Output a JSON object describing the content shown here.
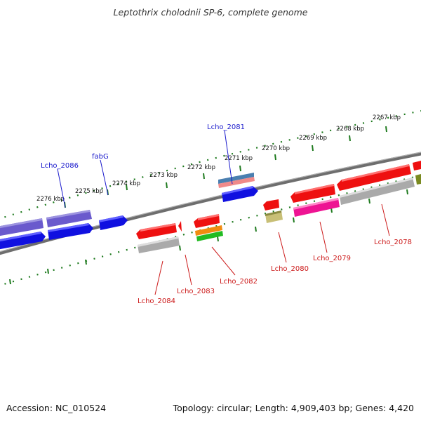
{
  "title": "Leptothrix cholodnii SP-6, complete genome",
  "footer": {
    "accession": "Accession: NC_010524",
    "summary": "Topology: circular; Length: 4,909,403 bp; Genes: 4,420"
  },
  "colors": {
    "axis": "#777777",
    "ticks": "#1e7a1e",
    "forward_label": "#1a1acc",
    "reverse_label": "#cc1a1a"
  },
  "scale_ticks": [
    {
      "label": "2267 kbp",
      "kbp": 2267
    },
    {
      "label": "2268 kbp",
      "kbp": 2268
    },
    {
      "label": "2269 kbp",
      "kbp": 2269
    },
    {
      "label": "2270 kbp",
      "kbp": 2270
    },
    {
      "label": "2271 kbp",
      "kbp": 2271
    },
    {
      "label": "2272 kbp",
      "kbp": 2272
    },
    {
      "label": "2273 kbp",
      "kbp": 2273
    },
    {
      "label": "2274 kbp",
      "kbp": 2274
    },
    {
      "label": "2275 kbp",
      "kbp": 2275
    },
    {
      "label": "2276 kbp",
      "kbp": 2276
    }
  ],
  "gene_labels": [
    {
      "text": "Lcho_2086",
      "strand": "forward"
    },
    {
      "text": "fabG",
      "strand": "forward"
    },
    {
      "text": "Lcho_2081",
      "strand": "forward"
    },
    {
      "text": "Lcho_2084",
      "strand": "reverse"
    },
    {
      "text": "Lcho_2083",
      "strand": "reverse"
    },
    {
      "text": "Lcho_2082",
      "strand": "reverse"
    },
    {
      "text": "Lcho_2080",
      "strand": "reverse"
    },
    {
      "text": "Lcho_2079",
      "strand": "reverse"
    },
    {
      "text": "Lcho_2078",
      "strand": "reverse"
    }
  ]
}
